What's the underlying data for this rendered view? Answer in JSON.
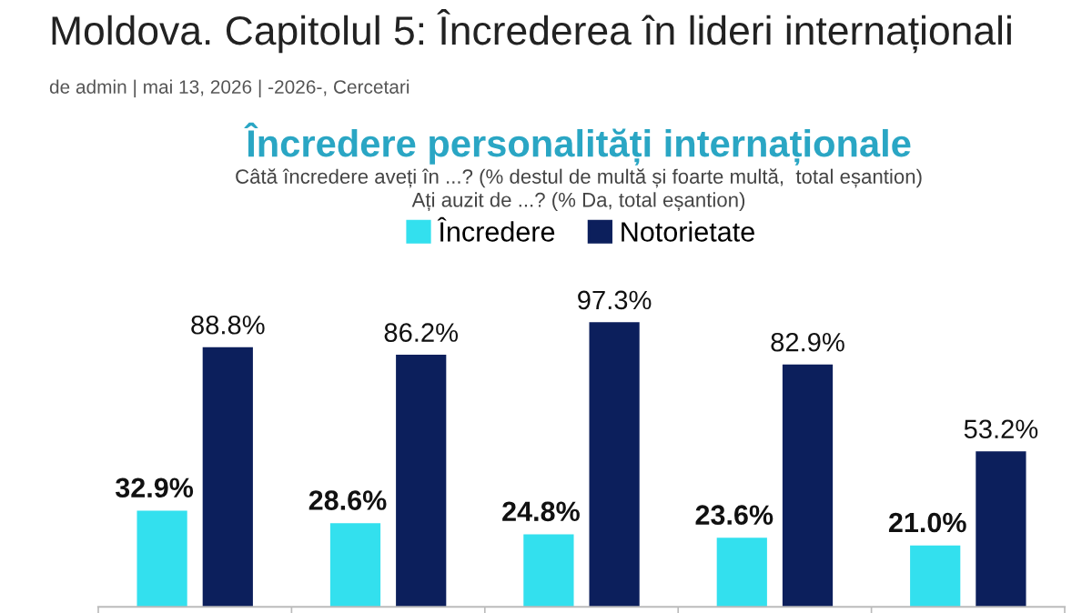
{
  "chart_data": {
    "type": "bar",
    "title": "Încredere personalități internaționale",
    "subtitle": "Câtă încredere aveți în ...? (% destul de multă și foarte multă,  total eșantion)\nAți auzit de ...? (% Da, total eșantion)",
    "annotations": [
      "Moldova. Capitolul 5: Încrederea în lideri internaționali",
      "de admin | mai 13, 2026 | -2026-, Cercetari"
    ],
    "categories": [
      null,
      null,
      null,
      null,
      null
    ],
    "series": [
      {
        "name": "Încredere",
        "color": "#33e0ee",
        "values": [
          32.9,
          28.6,
          24.8,
          23.6,
          21.0
        ],
        "value_labels": [
          "32.9%",
          "28.6%",
          "24.8%",
          "23.6%",
          "21.0%"
        ]
      },
      {
        "name": "Notorietate",
        "color": "#0c1f5c",
        "values": [
          88.8,
          86.2,
          97.3,
          82.9,
          53.2
        ],
        "value_labels": [
          "88.8%",
          "86.2%",
          "97.3%",
          "82.9%",
          "53.2%"
        ]
      }
    ],
    "legend": "top",
    "grid": false
  }
}
